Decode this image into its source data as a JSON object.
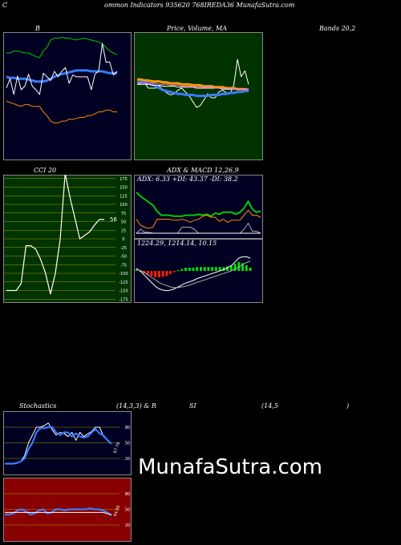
{
  "header": {
    "c": "C",
    "text": "ommon  Indicators 935620  768IREDA36  MunafaSutra.com"
  },
  "titles": {
    "bb_left": "B",
    "bb_mid": "Price,  Volume,  MA",
    "bb_right": "Bands 20,2",
    "cci": "CCI 20",
    "adx_left": "ADX  & MACD 12,26,9",
    "stoch_left": "Stochastics",
    "stoch_mid": "(14,3,3) & R",
    "stoch_rsi": "SI",
    "stoch_rsi_param": "(14,5",
    "stoch_close": ")"
  },
  "watermark": "MunafaSutra.com",
  "colors": {
    "bb_bg": "#000022",
    "price_bg": "#003300",
    "cci_bg": "#003300",
    "adx_bg": "#000022",
    "stoch_bg": "#000022",
    "rsi_bg": "#880000",
    "grid_line": "#a0a000",
    "blue_line": "#3a7bff",
    "orange_line": "#ff8800",
    "green_line": "#00cc00",
    "white_line": "#ffffff"
  },
  "chart_data": [
    {
      "type": "line",
      "name": "bollinger",
      "series": [
        {
          "key": "upper",
          "color": "#00cc00",
          "values": [
            60,
            60,
            62,
            62,
            61,
            60,
            60,
            58,
            56,
            55,
            62,
            66,
            74,
            76,
            76,
            77,
            76,
            76,
            75,
            74,
            75,
            76,
            75,
            74,
            73,
            72,
            70,
            66,
            62,
            60,
            58
          ]
        },
        {
          "key": "middle",
          "color": "#3a7bff",
          "values": [
            34,
            33,
            33,
            32,
            32,
            32,
            31,
            30,
            29,
            29,
            29,
            30,
            32,
            34,
            36,
            37,
            38,
            39,
            40,
            41,
            41,
            41,
            41,
            40,
            40,
            40,
            40,
            39,
            38,
            38,
            38
          ]
        },
        {
          "key": "lower",
          "color": "#ff8800",
          "values": [
            8,
            6,
            5,
            3,
            2,
            4,
            4,
            2,
            2,
            2,
            -4,
            -8,
            -14,
            -16,
            -16,
            -14,
            -14,
            -12,
            -12,
            -11,
            -10,
            -10,
            -8,
            -8,
            -6,
            -4,
            -4,
            -2,
            -2,
            -4,
            -4
          ]
        },
        {
          "key": "price",
          "color": "#ffffff",
          "values": [
            22,
            32,
            15,
            35,
            20,
            24,
            37,
            24,
            20,
            15,
            38,
            34,
            30,
            40,
            34,
            40,
            44,
            27,
            36,
            34,
            34,
            34,
            34,
            20,
            37,
            40,
            70,
            50,
            50,
            36,
            40
          ]
        }
      ]
    },
    {
      "type": "line",
      "name": "price_volume_ma",
      "series": [
        {
          "key": "price",
          "values": [
            44,
            45,
            46,
            40,
            40,
            40,
            42,
            38,
            35,
            33,
            34,
            38,
            40,
            36,
            32,
            26,
            20,
            22,
            28,
            34,
            30,
            30,
            36,
            38,
            35,
            34,
            43,
            70,
            52,
            58,
            44
          ]
        },
        {
          "key": "ma_orange",
          "values": [
            49,
            49,
            48,
            48,
            47,
            47,
            47,
            46,
            46,
            45,
            45,
            45,
            44,
            44,
            44,
            43,
            43,
            43,
            42,
            42,
            42,
            41,
            41,
            41,
            40,
            40,
            40,
            39,
            39,
            39,
            38
          ]
        },
        {
          "key": "ma_blue",
          "values": [
            46,
            46,
            46,
            45,
            44,
            42,
            40,
            38,
            37,
            36,
            35,
            34,
            34,
            33,
            33,
            33,
            32,
            32,
            32,
            32,
            33,
            33,
            33,
            34,
            34,
            35,
            35,
            36,
            36,
            37,
            37
          ]
        },
        {
          "key": "ma_white",
          "values": [
            44,
            44,
            44,
            44,
            43,
            43,
            43,
            42,
            42,
            42,
            42,
            41,
            41,
            41,
            41,
            41,
            40,
            40,
            40,
            40,
            40,
            40,
            40,
            39,
            39,
            39,
            39,
            39,
            39,
            39,
            39
          ]
        },
        {
          "key": "ma_pink",
          "values": [
            46,
            46,
            45,
            45,
            45,
            45,
            44,
            44,
            44,
            43,
            43,
            43,
            42,
            42,
            42,
            42,
            41,
            41,
            41,
            41,
            41,
            40,
            40,
            40,
            40,
            40,
            39,
            39,
            39,
            39,
            39
          ]
        }
      ]
    },
    {
      "type": "line",
      "name": "cci",
      "ticks": [
        175,
        150,
        125,
        100,
        75,
        50,
        25,
        0,
        -25,
        -50,
        -75,
        -100,
        -125,
        -150,
        -175
      ],
      "last_value_label": "56",
      "values": [
        -150,
        -150,
        -150,
        -130,
        -20,
        -20,
        -30,
        -60,
        -100,
        -160,
        -100,
        0,
        190,
        120,
        60,
        0,
        10,
        20,
        40,
        56,
        56
      ]
    },
    {
      "type": "line",
      "name": "adx",
      "text": "ADX: 6.33  +DI: 43.37  -DI: 38.2",
      "series": [
        {
          "key": "adx",
          "color": "#00cc00",
          "values": [
            45,
            41,
            38,
            35,
            32,
            26,
            22,
            22,
            22,
            21,
            21,
            21,
            22,
            22,
            22,
            23,
            22,
            23,
            21,
            24,
            23,
            25,
            25,
            25,
            23,
            25,
            29,
            36,
            28,
            25,
            26
          ]
        },
        {
          "key": "plus_di",
          "color": "#ff8800",
          "values": [
            18,
            12,
            10,
            9,
            10,
            18,
            18,
            18,
            18,
            17,
            17,
            18,
            17,
            15,
            17,
            18,
            21,
            22,
            20,
            20,
            16,
            18,
            15,
            17,
            17,
            17,
            22,
            27,
            22,
            22,
            20
          ]
        },
        {
          "key": "minus_di",
          "color": "#aaaaaa",
          "values": [
            4,
            8,
            5,
            5,
            4,
            4,
            4,
            4,
            4,
            4,
            4,
            10,
            10,
            10,
            8,
            4,
            4,
            4,
            4,
            4,
            4,
            4,
            4,
            4,
            4,
            4,
            8,
            14,
            6,
            6,
            4
          ]
        },
        {
          "key": "dx",
          "color": "#ffffff",
          "values": [
            4,
            4,
            4,
            4,
            4,
            4,
            4,
            4,
            4,
            4,
            4,
            4,
            4,
            4,
            4,
            4,
            4,
            4,
            4,
            4,
            4,
            4,
            4,
            4,
            4,
            4,
            4,
            4,
            4,
            4,
            4
          ]
        }
      ]
    },
    {
      "type": "bar",
      "name": "macd",
      "text": "1224.29,  1214.14,  10.15",
      "series": [
        {
          "key": "macd",
          "color": "#ffffff",
          "values": [
            4,
            0,
            -6,
            -12,
            -18,
            -24,
            -28,
            -30,
            -31,
            -30,
            -28,
            -25,
            -22,
            -19,
            -17,
            -15,
            -12,
            -10,
            -8,
            -6,
            -4,
            -2,
            0,
            2,
            5,
            8,
            14,
            20,
            22,
            22,
            20
          ]
        },
        {
          "key": "signal",
          "color": "#aaaaaa",
          "values": [
            2,
            1,
            -2,
            -6,
            -10,
            -14,
            -18,
            -21,
            -23,
            -25,
            -26,
            -26,
            -25,
            -24,
            -22,
            -20,
            -18,
            -16,
            -14,
            -12,
            -10,
            -8,
            -6,
            -4,
            -2,
            0,
            3,
            6,
            10,
            13,
            15
          ]
        },
        {
          "key": "histogram",
          "values": [
            2,
            -1,
            -4,
            -6,
            -8,
            -10,
            -10,
            -9,
            -8,
            -5,
            -2,
            1,
            3,
            5,
            5,
            5,
            6,
            6,
            6,
            6,
            6,
            6,
            6,
            6,
            7,
            8,
            11,
            14,
            12,
            9,
            5
          ]
        }
      ]
    },
    {
      "type": "line",
      "name": "stochastics",
      "ticks": [
        80,
        50,
        20
      ],
      "value_label": "67.76",
      "series": [
        {
          "key": "k",
          "color": "#ffffff",
          "values": [
            10,
            10,
            10,
            12,
            14,
            25,
            50,
            65,
            80,
            80,
            83,
            88,
            75,
            65,
            70,
            68,
            62,
            70,
            55,
            70,
            62,
            67,
            72,
            80,
            80,
            62,
            55,
            48
          ]
        },
        {
          "key": "d",
          "color": "#3a7bff",
          "values": [
            10,
            10,
            10,
            11,
            14,
            20,
            38,
            50,
            70,
            78,
            78,
            80,
            80,
            70,
            65,
            70,
            70,
            62,
            68,
            62,
            60,
            62,
            70,
            76,
            68,
            64,
            55,
            48
          ]
        }
      ]
    },
    {
      "type": "line",
      "name": "rsi",
      "ticks": [
        80,
        50,
        20
      ],
      "value_label": "44.06",
      "series": [
        {
          "key": "rsi",
          "color": "#3a7bff",
          "values": [
            40,
            40,
            42,
            48,
            50,
            46,
            40,
            42,
            48,
            50,
            42,
            44,
            50,
            50,
            48,
            50,
            50,
            50,
            50,
            50,
            52,
            50,
            50,
            48,
            44,
            38
          ]
        },
        {
          "key": "mfi",
          "color": "#ffffff",
          "values": [
            44,
            44,
            44,
            44,
            44,
            44,
            44,
            44,
            44,
            44,
            44,
            44,
            44,
            44,
            44,
            44,
            44,
            44,
            44,
            44,
            44,
            44,
            44,
            44,
            42,
            40
          ]
        }
      ]
    }
  ]
}
